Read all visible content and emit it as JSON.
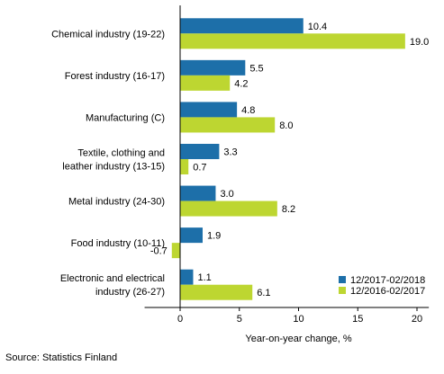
{
  "chart_data": {
    "type": "bar",
    "orientation": "horizontal",
    "categories": [
      [
        "Chemical industry (19-22)"
      ],
      [
        "Forest industry (16-17)"
      ],
      [
        "Manufacturing (C)"
      ],
      [
        "Textile, clothing and",
        "leather industry (13-15)"
      ],
      [
        "Metal industry (24-30)"
      ],
      [
        "Food industry (10-11)"
      ],
      [
        "Electronic and electrical",
        "industry (26-27)"
      ]
    ],
    "series": [
      {
        "name": "12/2017-02/2018",
        "color": "#1d6fa9",
        "values": [
          10.4,
          5.5,
          4.8,
          3.3,
          3.0,
          1.9,
          1.1
        ]
      },
      {
        "name": "12/2016-02/2017",
        "color": "#bdd631",
        "values": [
          19.0,
          4.2,
          8.0,
          0.7,
          8.2,
          -0.7,
          6.1
        ]
      }
    ],
    "xlabel": "Year-on-year change, %",
    "xlim": [
      -3,
      21
    ],
    "xticks": [
      0,
      5,
      10,
      15,
      20
    ],
    "grid": false,
    "legend_position": "bottom-right"
  },
  "source": "Source: Statistics Finland"
}
